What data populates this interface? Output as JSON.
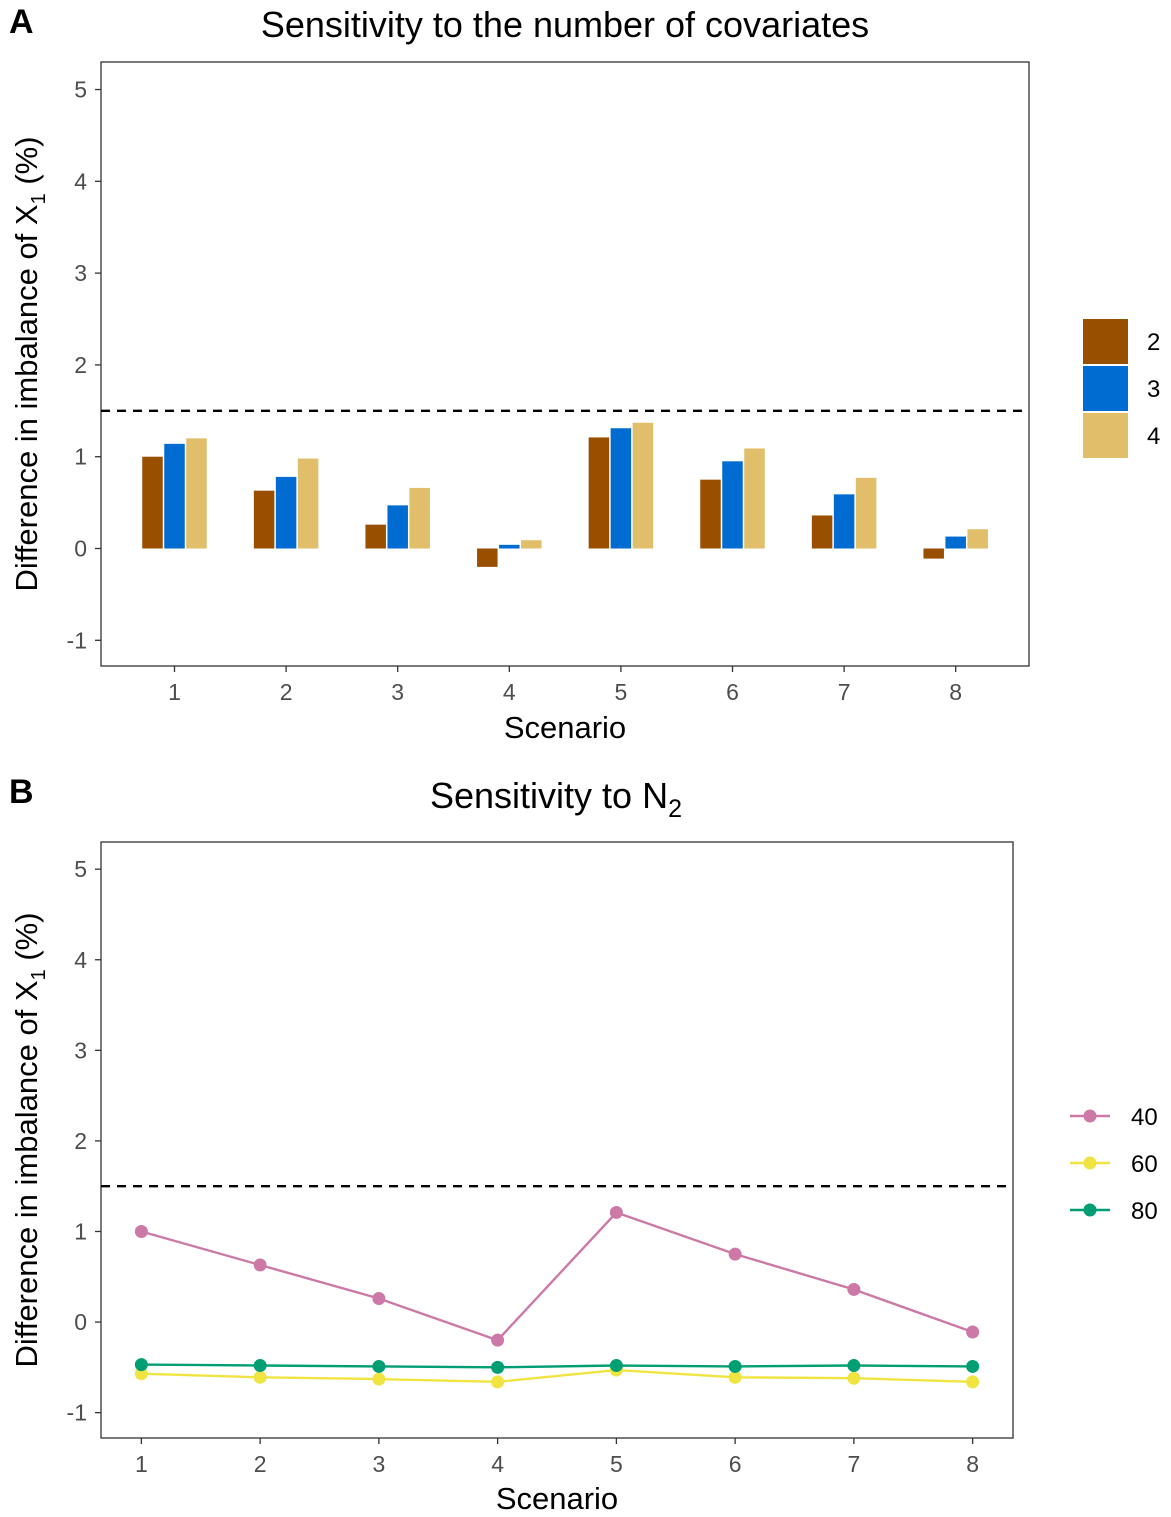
{
  "panels": [
    {
      "letter": "A",
      "title_main": "Sensitivity to the number of covariates",
      "title_sub": "",
      "xlabel": "Scenario",
      "ylabel_main": "Difference in imbalance of X",
      "ylabel_sub": "1",
      "ylabel_tail": " (%)"
    },
    {
      "letter": "B",
      "title_main": "Sensitivity to N",
      "title_sub": "2",
      "xlabel": "Scenario",
      "ylabel_main": "Difference in imbalance of X",
      "ylabel_sub": "1",
      "ylabel_tail": " (%)"
    }
  ],
  "chart_data": [
    {
      "type": "bar",
      "title": "Sensitivity to the number of covariates",
      "xlabel": "Scenario",
      "ylabel": "Difference in imbalance of X1 (%)",
      "categories": [
        "1",
        "2",
        "3",
        "4",
        "5",
        "6",
        "7",
        "8"
      ],
      "series": [
        {
          "name": "2",
          "color": "#994f00",
          "values": [
            1.0,
            0.63,
            0.26,
            -0.2,
            1.21,
            0.75,
            0.36,
            -0.11
          ]
        },
        {
          "name": "3",
          "color": "#006cd1",
          "values": [
            1.14,
            0.78,
            0.47,
            0.04,
            1.31,
            0.95,
            0.59,
            0.13
          ]
        },
        {
          "name": "4",
          "color": "#e1be6a",
          "values": [
            1.2,
            0.98,
            0.66,
            0.09,
            1.37,
            1.09,
            0.77,
            0.21
          ]
        }
      ],
      "yticks": [
        -1,
        0,
        1,
        2,
        3,
        4,
        5
      ],
      "ylim": [
        -1.28,
        5.3
      ],
      "reference_line": 1.5,
      "grid": false,
      "legend_position": "right"
    },
    {
      "type": "line",
      "title": "Sensitivity to N2",
      "xlabel": "Scenario",
      "ylabel": "Difference in imbalance of X1 (%)",
      "x": [
        1,
        2,
        3,
        4,
        5,
        6,
        7,
        8
      ],
      "series": [
        {
          "name": "40",
          "color": "#cc79a7",
          "values": [
            1.0,
            0.63,
            0.26,
            -0.2,
            1.21,
            0.75,
            0.36,
            -0.11
          ]
        },
        {
          "name": "60",
          "color": "#f0e442",
          "values": [
            -0.57,
            -0.61,
            -0.63,
            -0.66,
            -0.53,
            -0.61,
            -0.62,
            -0.66
          ]
        },
        {
          "name": "80",
          "color": "#009e73",
          "values": [
            -0.47,
            -0.48,
            -0.49,
            -0.5,
            -0.48,
            -0.49,
            -0.48,
            -0.49
          ]
        }
      ],
      "yticks": [
        -1,
        0,
        1,
        2,
        3,
        4,
        5
      ],
      "ylim": [
        -1.28,
        5.3
      ],
      "reference_line": 1.5,
      "grid": false,
      "legend_position": "right"
    }
  ]
}
